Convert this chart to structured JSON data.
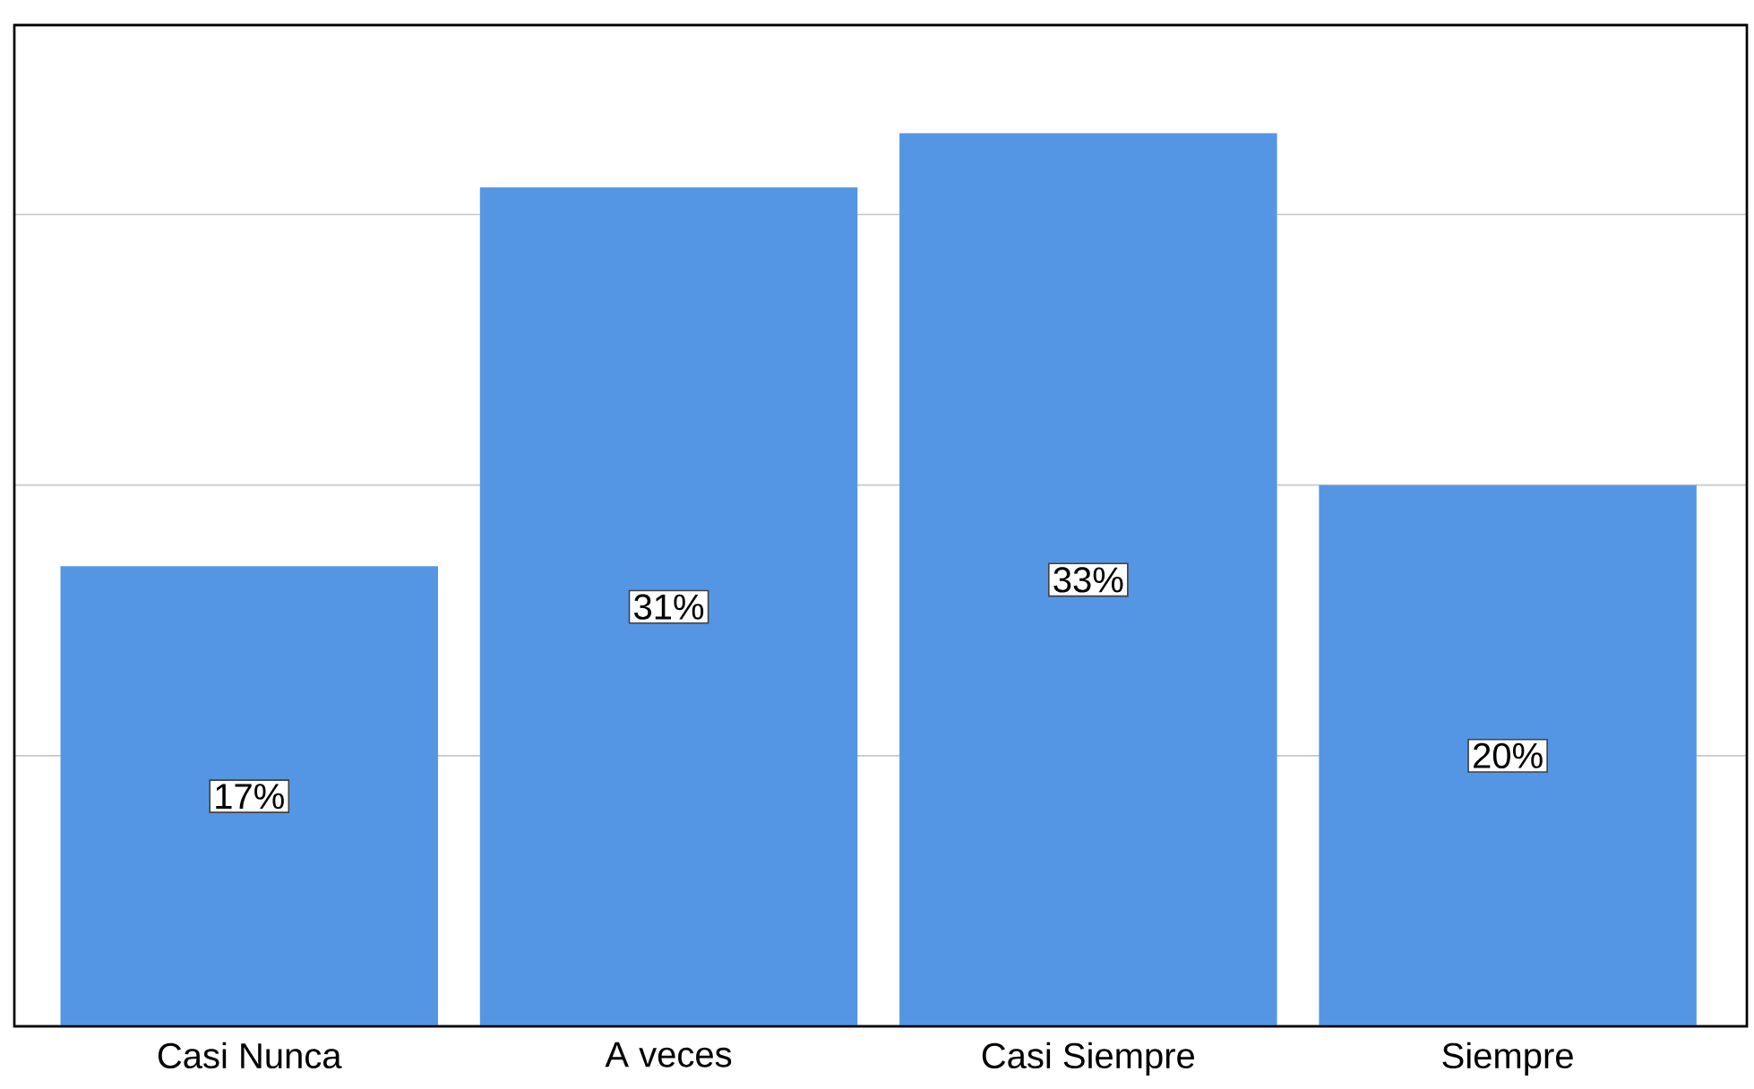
{
  "chart_data": {
    "type": "bar",
    "categories": [
      "Casi Nunca",
      "A veces",
      "Casi Siempre",
      "Siempre"
    ],
    "values": [
      17,
      31,
      33,
      20
    ],
    "value_labels": [
      "17%",
      "31%",
      "33%",
      "20%"
    ],
    "color": "#5596e4",
    "ylim": [
      0,
      37
    ],
    "yticks": [
      {
        "value": 10,
        "label": null
      },
      {
        "value": 20,
        "label": null
      },
      {
        "value": 30,
        "label": null
      }
    ],
    "tick_labels": "x",
    "grid": "y"
  }
}
